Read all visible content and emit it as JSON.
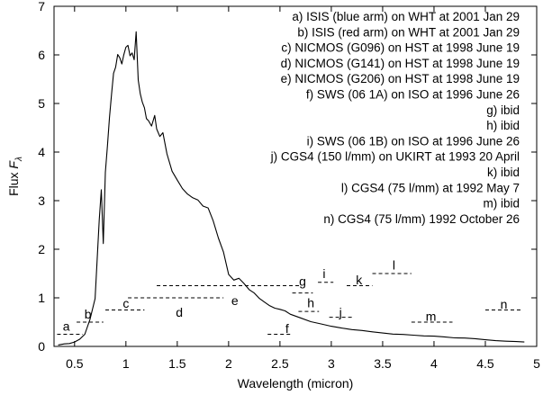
{
  "chart_data": {
    "type": "line",
    "title": "",
    "xlabel": "Wavelength (micron)",
    "ylabel_prefix": "Flux ",
    "ylabel_symbol": "F",
    "ylabel_subscript": "λ",
    "xlim": [
      0.3,
      5.0
    ],
    "ylim": [
      0,
      7
    ],
    "x_ticks": [
      0.5,
      1,
      1.5,
      2,
      2.5,
      3,
      3.5,
      4,
      4.5,
      5
    ],
    "x_tick_labels": [
      "0.5",
      "1",
      "1.5",
      "2",
      "2.5",
      "3",
      "3.5",
      "4",
      "4.5",
      "5"
    ],
    "y_ticks": [
      0,
      1,
      2,
      3,
      4,
      5,
      6,
      7
    ],
    "y_tick_labels": [
      "0",
      "1",
      "2",
      "3",
      "4",
      "5",
      "6",
      "7"
    ],
    "grid": false,
    "legend_position": "top-right",
    "legend": [
      "a) ISIS (blue arm) on WHT at 2001 Jan 29",
      "b) ISIS (red arm) on WHT at 2001 Jan 29",
      "c) NICMOS (G096) on HST at 1998 June 19",
      "d) NICMOS (G141) on HST at 1998 June 19",
      "e) NICMOS (G206) on HST at 1998 June 19",
      "f) SWS (06 1A) on ISO at 1996 June 26",
      "g) ibid",
      "h) ibid",
      "i) SWS (06 1B) on ISO at 1996 June 26",
      "j) CGS4 (150 l/mm) on UKIRT at 1993 20 April",
      "k) ibid",
      "l) CGS4 (75 l/mm) at 1992 May 7",
      "m) ibid",
      "n) CGS4 (75 l/mm)  1992 October 26"
    ],
    "segments": [
      {
        "label": "a",
        "x0": 0.33,
        "x1": 0.58,
        "y": 0.25,
        "lx": 0.42,
        "ly": 0.42
      },
      {
        "label": "b",
        "x0": 0.52,
        "x1": 0.78,
        "y": 0.5,
        "lx": 0.63,
        "ly": 0.67
      },
      {
        "label": "c",
        "x0": 0.8,
        "x1": 1.18,
        "y": 0.75,
        "lx": 1.0,
        "ly": 0.89
      },
      {
        "label": "d",
        "x0": 1.02,
        "x1": 1.95,
        "y": 1.0,
        "lx": 1.52,
        "ly": 0.7
      },
      {
        "label": "e",
        "x0": 1.3,
        "x1": 2.7,
        "y": 1.25,
        "lx": 2.06,
        "ly": 0.94
      },
      {
        "label": "f",
        "x0": 2.38,
        "x1": 2.62,
        "y": 0.25,
        "lx": 2.57,
        "ly": 0.37
      },
      {
        "label": "g",
        "x0": 2.62,
        "x1": 2.82,
        "y": 1.1,
        "lx": 2.72,
        "ly": 1.34
      },
      {
        "label": "h",
        "x0": 2.68,
        "x1": 2.88,
        "y": 0.72,
        "lx": 2.8,
        "ly": 0.9
      },
      {
        "label": "i",
        "x0": 2.87,
        "x1": 3.02,
        "y": 1.32,
        "lx": 2.93,
        "ly": 1.5
      },
      {
        "label": "j",
        "x0": 2.98,
        "x1": 3.2,
        "y": 0.6,
        "lx": 3.09,
        "ly": 0.7
      },
      {
        "label": "k",
        "x0": 3.15,
        "x1": 3.4,
        "y": 1.25,
        "lx": 3.27,
        "ly": 1.37
      },
      {
        "label": "l",
        "x0": 3.4,
        "x1": 3.78,
        "y": 1.5,
        "lx": 3.61,
        "ly": 1.68
      },
      {
        "label": "m",
        "x0": 3.78,
        "x1": 4.18,
        "y": 0.5,
        "lx": 3.97,
        "ly": 0.62
      },
      {
        "label": "n",
        "x0": 4.5,
        "x1": 4.85,
        "y": 0.75,
        "lx": 4.68,
        "ly": 0.87
      }
    ],
    "series": [
      {
        "x": [
          0.34,
          0.4,
          0.45,
          0.5,
          0.55,
          0.6,
          0.65,
          0.7,
          0.72,
          0.74,
          0.76,
          0.78,
          0.8,
          0.82,
          0.84,
          0.86,
          0.88,
          0.9,
          0.92,
          0.94,
          0.96,
          0.98,
          1.0,
          1.02,
          1.04,
          1.06,
          1.08,
          1.1,
          1.12,
          1.14,
          1.16,
          1.18,
          1.2,
          1.22,
          1.25,
          1.28,
          1.3,
          1.33,
          1.36,
          1.4,
          1.45,
          1.5,
          1.55,
          1.6,
          1.65,
          1.7,
          1.75,
          1.8,
          1.85,
          1.9,
          1.95,
          2.0,
          2.05,
          2.1,
          2.15,
          2.2,
          2.25,
          2.3,
          2.35,
          2.4,
          2.45,
          2.5,
          2.55,
          2.6,
          2.7,
          2.8,
          2.9,
          3.0,
          3.1,
          3.2,
          3.3,
          3.4,
          3.5,
          3.6,
          3.7,
          3.8,
          3.9,
          4.0,
          4.1,
          4.2,
          4.3,
          4.4,
          4.5,
          4.6,
          4.7,
          4.8,
          4.88
        ],
        "y": [
          0.03,
          0.05,
          0.06,
          0.09,
          0.15,
          0.25,
          0.55,
          1.0,
          1.8,
          2.6,
          3.2,
          2.1,
          3.6,
          4.1,
          4.7,
          5.2,
          5.6,
          5.75,
          6.0,
          5.95,
          5.8,
          6.0,
          6.15,
          6.2,
          6.0,
          6.05,
          5.9,
          6.5,
          5.5,
          5.2,
          5.0,
          4.9,
          4.7,
          4.65,
          4.55,
          4.75,
          4.45,
          4.3,
          4.4,
          3.95,
          3.6,
          3.4,
          3.25,
          3.15,
          3.05,
          3.0,
          2.9,
          2.85,
          2.6,
          2.25,
          1.95,
          1.5,
          1.35,
          1.4,
          1.3,
          1.15,
          1.1,
          1.0,
          0.92,
          0.85,
          0.8,
          0.78,
          0.72,
          0.68,
          0.6,
          0.52,
          0.46,
          0.42,
          0.38,
          0.35,
          0.33,
          0.3,
          0.28,
          0.26,
          0.25,
          0.23,
          0.22,
          0.21,
          0.2,
          0.18,
          0.17,
          0.16,
          0.14,
          0.12,
          0.11,
          0.1,
          0.09
        ]
      }
    ]
  }
}
